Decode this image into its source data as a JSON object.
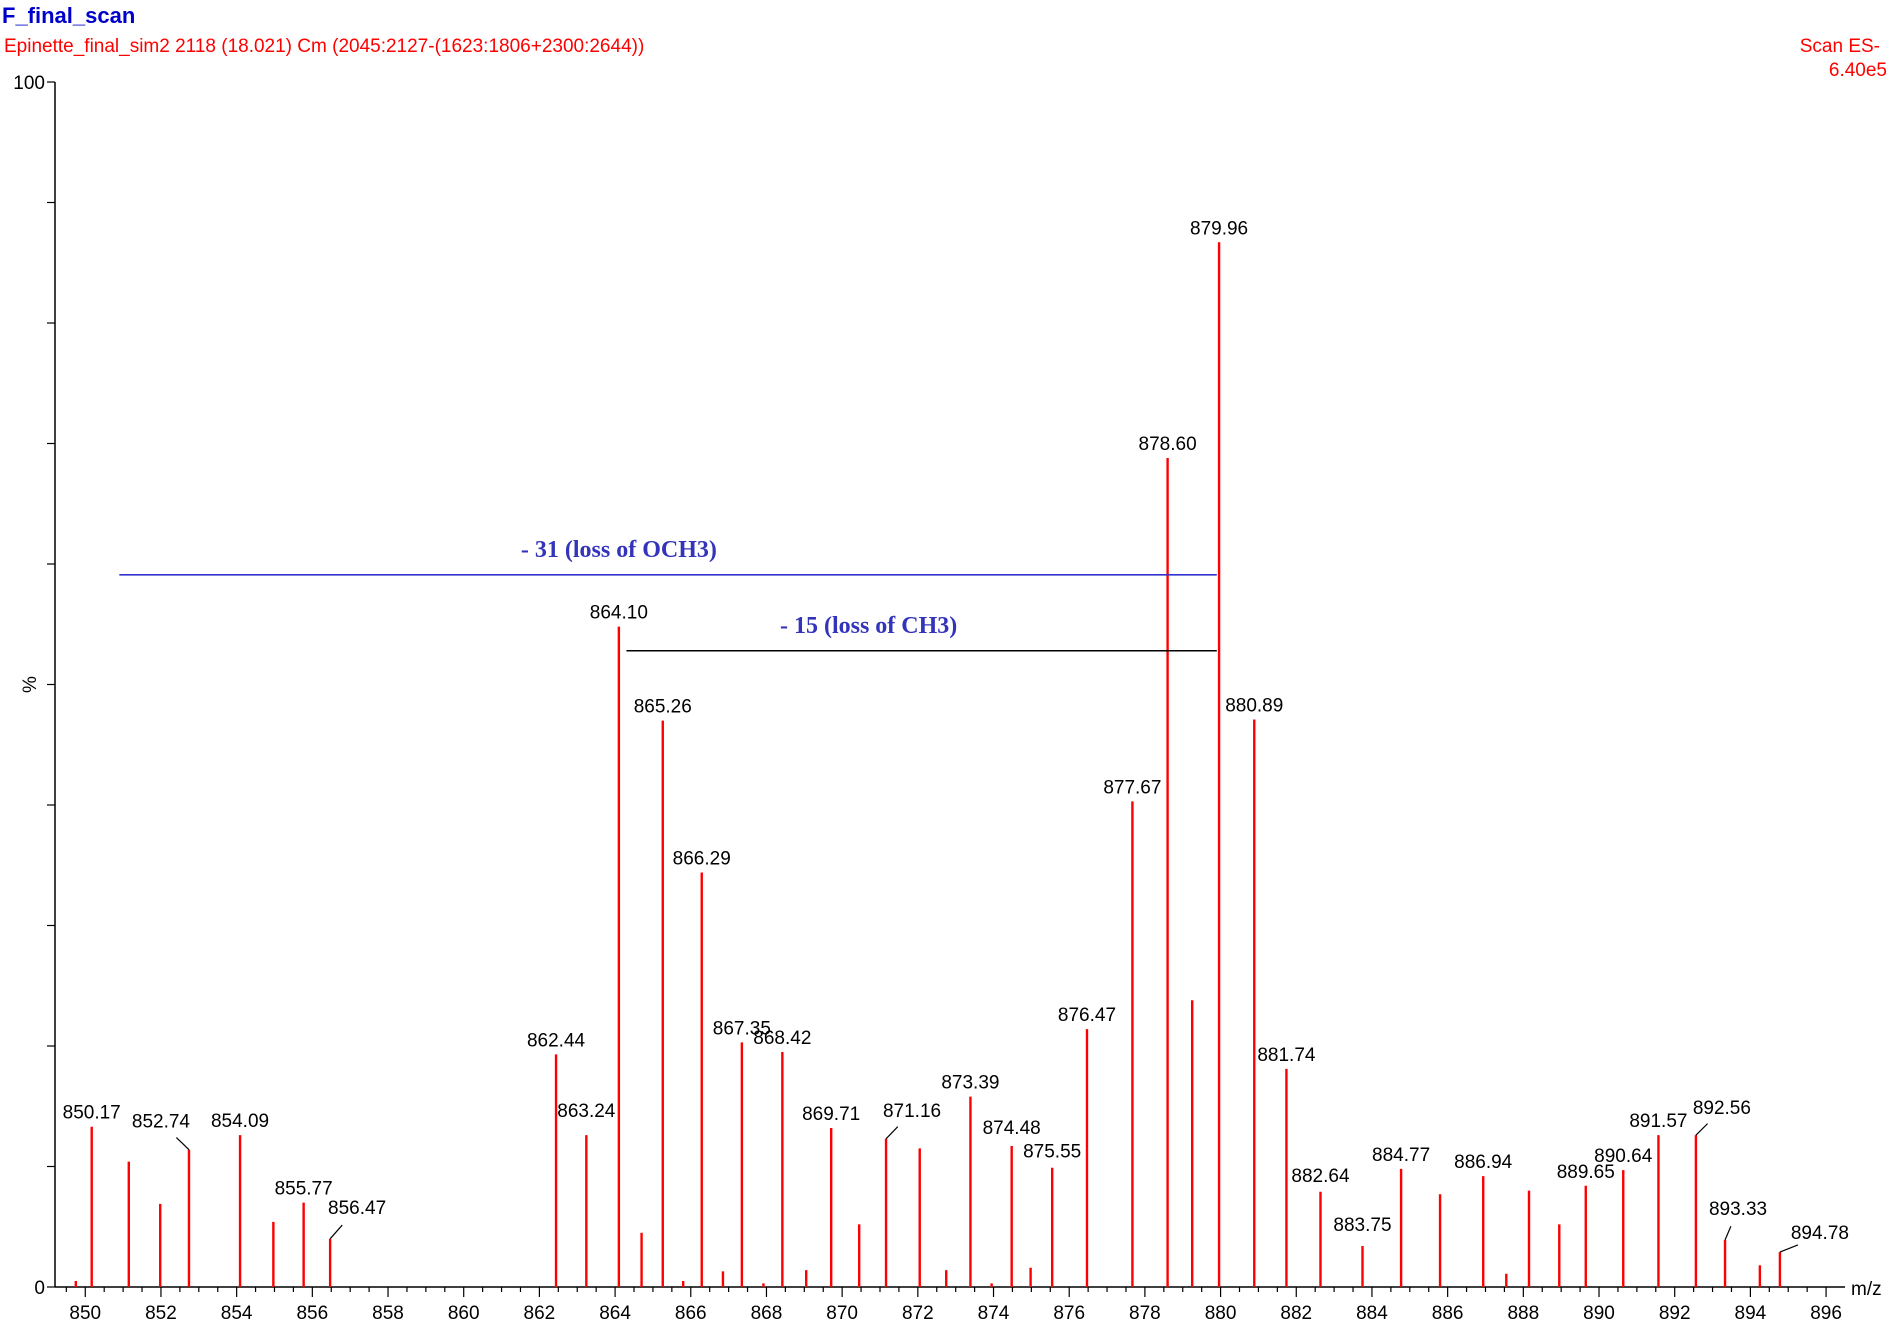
{
  "header": {
    "title": "F_final_scan",
    "subtitle": "Epinette_final_sim2 2118 (18.021) Cm (2045:2127-(1623:1806+2300:2644))",
    "scan_mode": "Scan ES-",
    "intensity": "6.40e5"
  },
  "colors": {
    "title": "#0000cc",
    "subtitle": "#ff0000",
    "peaks": "#ff0000",
    "axis": "#000000",
    "annotation_text": "#3333bb",
    "annotation_line_och3": "#3333cc",
    "annotation_line_ch3": "#000000"
  },
  "chart_data": {
    "type": "bar",
    "xlabel": "m/z",
    "ylabel": "%",
    "xlim": [
      849.2,
      896.5
    ],
    "ylim": [
      0,
      100
    ],
    "y_ticks": [
      {
        "value": 0,
        "label": "0"
      },
      {
        "value": 100,
        "label": "100"
      }
    ],
    "x_ticks": [
      850,
      852,
      854,
      856,
      858,
      860,
      862,
      864,
      866,
      868,
      870,
      872,
      874,
      876,
      878,
      880,
      882,
      884,
      886,
      888,
      890,
      892,
      894,
      896
    ],
    "grid": false,
    "peaks": [
      {
        "mz": 849.75,
        "intensity": 0.5
      },
      {
        "mz": 850.17,
        "intensity": 13.3,
        "label": "850.17"
      },
      {
        "mz": 851.15,
        "intensity": 10.4
      },
      {
        "mz": 851.98,
        "intensity": 6.9
      },
      {
        "mz": 852.74,
        "intensity": 11.4,
        "label": "852.74"
      },
      {
        "mz": 854.09,
        "intensity": 12.6,
        "label": "854.09"
      },
      {
        "mz": 854.97,
        "intensity": 5.4
      },
      {
        "mz": 855.77,
        "intensity": 7.0,
        "label": "855.77"
      },
      {
        "mz": 856.47,
        "intensity": 4.0,
        "label": "856.47"
      },
      {
        "mz": 862.44,
        "intensity": 19.3,
        "label": "862.44"
      },
      {
        "mz": 863.24,
        "intensity": 12.6,
        "label": "863.24"
      },
      {
        "mz": 864.1,
        "intensity": 54.8,
        "label": "864.10"
      },
      {
        "mz": 864.7,
        "intensity": 4.5
      },
      {
        "mz": 865.26,
        "intensity": 47.0,
        "label": "865.26"
      },
      {
        "mz": 865.8,
        "intensity": 0.5
      },
      {
        "mz": 866.29,
        "intensity": 34.4,
        "label": "866.29"
      },
      {
        "mz": 866.85,
        "intensity": 1.3
      },
      {
        "mz": 867.35,
        "intensity": 20.3,
        "label": "867.35"
      },
      {
        "mz": 867.92,
        "intensity": 0.3
      },
      {
        "mz": 868.42,
        "intensity": 19.5,
        "label": "868.42"
      },
      {
        "mz": 869.05,
        "intensity": 1.4
      },
      {
        "mz": 869.71,
        "intensity": 13.2,
        "label": "869.71"
      },
      {
        "mz": 870.45,
        "intensity": 5.2
      },
      {
        "mz": 871.16,
        "intensity": 12.3,
        "label": "871.16"
      },
      {
        "mz": 872.05,
        "intensity": 11.5
      },
      {
        "mz": 872.75,
        "intensity": 1.4
      },
      {
        "mz": 873.39,
        "intensity": 15.8,
        "label": "873.39"
      },
      {
        "mz": 873.95,
        "intensity": 0.3
      },
      {
        "mz": 874.48,
        "intensity": 11.7,
        "label": "874.48"
      },
      {
        "mz": 874.98,
        "intensity": 1.6
      },
      {
        "mz": 875.55,
        "intensity": 9.9,
        "label": "875.55"
      },
      {
        "mz": 876.47,
        "intensity": 21.4,
        "label": "876.47"
      },
      {
        "mz": 877.67,
        "intensity": 40.3,
        "label": "877.67"
      },
      {
        "mz": 878.6,
        "intensity": 68.8,
        "label": "878.60"
      },
      {
        "mz": 879.25,
        "intensity": 23.8
      },
      {
        "mz": 879.96,
        "intensity": 86.7,
        "label": "879.96"
      },
      {
        "mz": 880.89,
        "intensity": 47.1,
        "label": "880.89"
      },
      {
        "mz": 881.74,
        "intensity": 18.1,
        "label": "881.74"
      },
      {
        "mz": 882.64,
        "intensity": 7.9,
        "label": "882.64"
      },
      {
        "mz": 883.75,
        "intensity": 3.4,
        "label": "883.75"
      },
      {
        "mz": 884.77,
        "intensity": 9.8,
        "label": "884.77"
      },
      {
        "mz": 885.8,
        "intensity": 7.7
      },
      {
        "mz": 886.94,
        "intensity": 9.2,
        "label": "886.94"
      },
      {
        "mz": 887.55,
        "intensity": 1.1
      },
      {
        "mz": 888.15,
        "intensity": 8.0
      },
      {
        "mz": 888.95,
        "intensity": 5.2
      },
      {
        "mz": 889.65,
        "intensity": 8.4,
        "label": "889.65"
      },
      {
        "mz": 890.64,
        "intensity": 9.7,
        "label": "890.64"
      },
      {
        "mz": 891.57,
        "intensity": 12.6,
        "label": "891.57"
      },
      {
        "mz": 892.56,
        "intensity": 12.6,
        "label": "892.56"
      },
      {
        "mz": 893.33,
        "intensity": 3.9,
        "label": "893.33"
      },
      {
        "mz": 894.25,
        "intensity": 1.8
      },
      {
        "mz": 894.78,
        "intensity": 2.9,
        "label": "894.78"
      }
    ],
    "annotations": [
      {
        "id": "och3",
        "text": "- 31 (loss of OCH3)",
        "from_mz": 850.9,
        "to_mz": 879.9,
        "level": 59.1
      },
      {
        "id": "ch3",
        "text": "- 15 (loss of CH3)",
        "from_mz": 864.3,
        "to_mz": 879.9,
        "level": 52.8
      }
    ]
  }
}
